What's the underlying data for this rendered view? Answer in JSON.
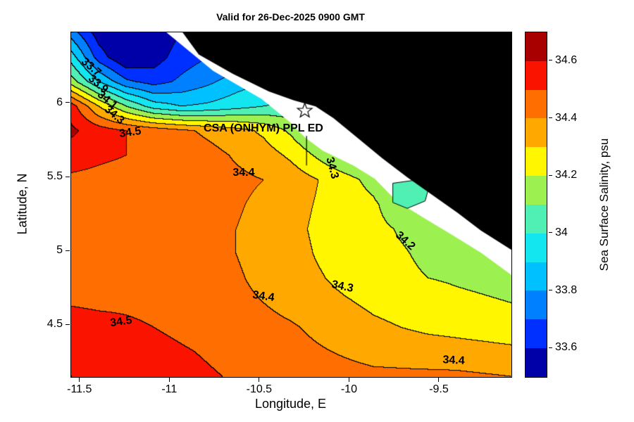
{
  "title": "Valid for 26-Dec-2025 0900 GMT",
  "axes": {
    "xlabel": "Longitude, E",
    "ylabel": "Latitude, N",
    "xticks": [
      {
        "label": "-11.5",
        "value": -11.5
      },
      {
        "label": "-11",
        "value": -11
      },
      {
        "label": "-10.5",
        "value": -10.5
      },
      {
        "label": "-10",
        "value": -10
      },
      {
        "label": "-9.5",
        "value": -9.5
      }
    ],
    "yticks": [
      {
        "label": "4.5",
        "value": 4.5
      },
      {
        "label": "5",
        "value": 5
      },
      {
        "label": "5.5",
        "value": 5.5
      },
      {
        "label": "6",
        "value": 6
      }
    ]
  },
  "colorbar": {
    "label": "Sea Surface Salinity, psu",
    "range": [
      33.5,
      34.7
    ],
    "ticks": [
      {
        "label": "33.6",
        "value": 33.6
      },
      {
        "label": "33.8",
        "value": 33.8
      },
      {
        "label": "34",
        "value": 34
      },
      {
        "label": "34.2",
        "value": 34.2
      },
      {
        "label": "34.4",
        "value": 34.4
      },
      {
        "label": "34.6",
        "value": 34.6
      }
    ],
    "band_colors": [
      "#0000A8",
      "#0030FF",
      "#0080FF",
      "#00C0FF",
      "#14E6F0",
      "#50F0B4",
      "#9CF050",
      "#FFF600",
      "#FFA800",
      "#FF6E00",
      "#FA1400",
      "#A80000"
    ]
  },
  "annotation": {
    "text": "CSA (ONHYM) PPL ED",
    "lon": -10.48,
    "lat": 5.83,
    "marker": "star",
    "marker_lon": -10.25,
    "marker_lat": 5.95,
    "line": {
      "lon": -10.24,
      "lat_from": 5.78,
      "lat_to": 5.58
    }
  },
  "chart_data": {
    "type": "heatmap",
    "subtype": "filled_contour_map",
    "title": "Valid for 26-Dec-2025 0900 GMT",
    "xlabel": "Longitude, E",
    "ylabel": "Latitude, N",
    "value_label": "Sea Surface Salinity, psu",
    "lon_range": [
      -11.55,
      -9.1
    ],
    "lat_range": [
      4.15,
      6.48
    ],
    "contour_interval": 0.1,
    "levels_range": [
      33.5,
      34.7
    ],
    "grid": {
      "lons": [
        -11.55,
        -11.397,
        -11.244,
        -11.091,
        -10.938,
        -10.784,
        -10.631,
        -10.478,
        -10.325,
        -10.172,
        -10.019,
        -9.866,
        -9.713,
        -9.559,
        -9.406,
        -9.253,
        -9.1
      ],
      "lats": [
        6.48,
        6.314,
        6.147,
        5.981,
        5.814,
        5.648,
        5.481,
        5.315,
        5.149,
        4.982,
        4.816,
        4.649,
        4.483,
        4.316,
        4.15
      ],
      "values": [
        [
          33.75,
          33.55,
          33.48,
          33.52,
          33.6,
          33.6,
          33.6,
          33.6,
          33.6,
          33.6,
          33.6,
          33.6,
          33.6,
          33.6,
          33.6,
          33.6,
          33.6
        ],
        [
          33.95,
          33.65,
          33.5,
          33.55,
          33.65,
          33.7,
          33.7,
          33.7,
          33.7,
          33.7,
          33.7,
          33.7,
          33.7,
          33.7,
          33.7,
          33.7,
          33.7
        ],
        [
          34.15,
          33.9,
          33.72,
          33.66,
          33.72,
          33.78,
          33.85,
          33.9,
          33.9,
          33.9,
          33.9,
          33.9,
          33.9,
          33.9,
          33.9,
          33.9,
          33.9
        ],
        [
          34.55,
          34.3,
          34.1,
          33.95,
          33.9,
          33.92,
          33.96,
          34.0,
          34.02,
          34.0,
          34.0,
          34.0,
          34.0,
          34.0,
          34.0,
          34.0,
          34.0
        ],
        [
          34.62,
          34.55,
          34.5,
          34.46,
          34.42,
          34.38,
          34.34,
          34.28,
          34.18,
          34.05,
          34.0,
          34.0,
          34.0,
          34.0,
          34.0,
          34.0,
          34.0
        ],
        [
          34.55,
          34.52,
          34.5,
          34.48,
          34.46,
          34.43,
          34.39,
          34.35,
          34.28,
          34.18,
          34.08,
          34.02,
          33.98,
          34.0,
          34.0,
          34.0,
          34.0
        ],
        [
          34.48,
          34.47,
          34.46,
          34.45,
          34.44,
          34.43,
          34.42,
          34.4,
          34.36,
          34.3,
          34.24,
          34.16,
          33.98,
          34.05,
          34.05,
          34.05,
          34.05
        ],
        [
          34.45,
          34.45,
          34.45,
          34.44,
          34.43,
          34.42,
          34.41,
          34.38,
          34.34,
          34.29,
          34.26,
          34.22,
          34.12,
          34.1,
          34.1,
          34.1,
          34.1
        ],
        [
          34.46,
          34.46,
          34.45,
          34.44,
          34.43,
          34.42,
          34.4,
          34.37,
          34.33,
          34.28,
          34.25,
          34.23,
          34.19,
          34.16,
          34.14,
          34.13,
          34.12
        ],
        [
          34.48,
          34.47,
          34.46,
          34.45,
          34.44,
          34.42,
          34.4,
          34.37,
          34.34,
          34.29,
          34.26,
          34.23,
          34.21,
          34.18,
          34.16,
          34.15,
          34.15
        ],
        [
          34.5,
          34.49,
          34.48,
          34.46,
          34.44,
          34.43,
          34.41,
          34.38,
          34.35,
          34.31,
          34.27,
          34.25,
          34.22,
          34.2,
          34.19,
          34.18,
          34.17
        ],
        [
          34.49,
          34.48,
          34.48,
          34.47,
          34.46,
          34.44,
          34.42,
          34.4,
          34.37,
          34.34,
          34.31,
          34.28,
          34.26,
          34.24,
          34.22,
          34.21,
          34.2
        ],
        [
          34.56,
          34.54,
          34.52,
          34.5,
          34.48,
          34.46,
          34.45,
          34.43,
          34.41,
          34.38,
          34.35,
          34.32,
          34.3,
          34.28,
          34.27,
          34.26,
          34.25
        ],
        [
          34.58,
          34.56,
          34.55,
          34.53,
          34.51,
          34.49,
          34.47,
          34.45,
          34.43,
          34.41,
          34.39,
          34.37,
          34.36,
          34.35,
          34.34,
          34.33,
          34.32
        ],
        [
          34.6,
          34.59,
          34.57,
          34.55,
          34.53,
          34.51,
          34.49,
          34.47,
          34.46,
          34.44,
          34.43,
          34.42,
          34.42,
          34.42,
          34.42,
          34.41,
          34.4
        ]
      ]
    },
    "contour_labels": [
      {
        "text": "33.7",
        "lon": -11.44,
        "lat": 6.24,
        "rot": 40
      },
      {
        "text": "33.9",
        "lon": -11.4,
        "lat": 6.13,
        "rot": 40
      },
      {
        "text": "34.1",
        "lon": -11.35,
        "lat": 6.02,
        "rot": 40
      },
      {
        "text": "34.3",
        "lon": -11.31,
        "lat": 5.92,
        "rot": 40
      },
      {
        "text": "34.5",
        "lon": -11.22,
        "lat": 5.8,
        "rot": -8
      },
      {
        "text": "34.4",
        "lon": -10.59,
        "lat": 5.53,
        "rot": 0
      },
      {
        "text": "34.3",
        "lon": -10.1,
        "lat": 5.56,
        "rot": 75
      },
      {
        "text": "34.2",
        "lon": -9.69,
        "lat": 5.07,
        "rot": 42
      },
      {
        "text": "34.4",
        "lon": -10.48,
        "lat": 4.69,
        "rot": 8
      },
      {
        "text": "34.3",
        "lon": -10.04,
        "lat": 4.76,
        "rot": 12
      },
      {
        "text": "34.5",
        "lon": -11.27,
        "lat": 4.52,
        "rot": -8
      },
      {
        "text": "34.4",
        "lon": -9.42,
        "lat": 4.26,
        "rot": 3
      }
    ],
    "nodata_polygon": [
      [
        -11.02,
        6.48
      ],
      [
        -10.76,
        6.22
      ],
      [
        -10.49,
        6.03
      ],
      [
        -10.33,
        5.87
      ],
      [
        -10.25,
        5.77
      ],
      [
        -10.15,
        5.68
      ],
      [
        -9.98,
        5.58
      ],
      [
        -9.86,
        5.49
      ],
      [
        -9.74,
        5.34
      ],
      [
        -9.58,
        5.22
      ],
      [
        -9.43,
        5.11
      ],
      [
        -9.27,
        4.99
      ],
      [
        -9.1,
        4.84
      ],
      [
        -9.1,
        6.48
      ]
    ],
    "land_polygon": [
      [
        -10.93,
        6.48
      ],
      [
        -10.84,
        6.33
      ],
      [
        -10.65,
        6.2
      ],
      [
        -10.45,
        6.08
      ],
      [
        -10.31,
        6.02
      ],
      [
        -10.19,
        5.98
      ],
      [
        -10.09,
        5.9
      ],
      [
        -9.96,
        5.77
      ],
      [
        -9.82,
        5.63
      ],
      [
        -9.68,
        5.5
      ],
      [
        -9.54,
        5.38
      ],
      [
        -9.4,
        5.26
      ],
      [
        -9.27,
        5.14
      ],
      [
        -9.1,
        5.01
      ],
      [
        -9.1,
        6.48
      ]
    ],
    "lowsal_patch": {
      "value": 34.05,
      "polygon": [
        [
          -9.76,
          5.46
        ],
        [
          -9.64,
          5.48
        ],
        [
          -9.56,
          5.43
        ],
        [
          -9.58,
          5.34
        ],
        [
          -9.68,
          5.29
        ],
        [
          -9.76,
          5.33
        ]
      ]
    }
  }
}
